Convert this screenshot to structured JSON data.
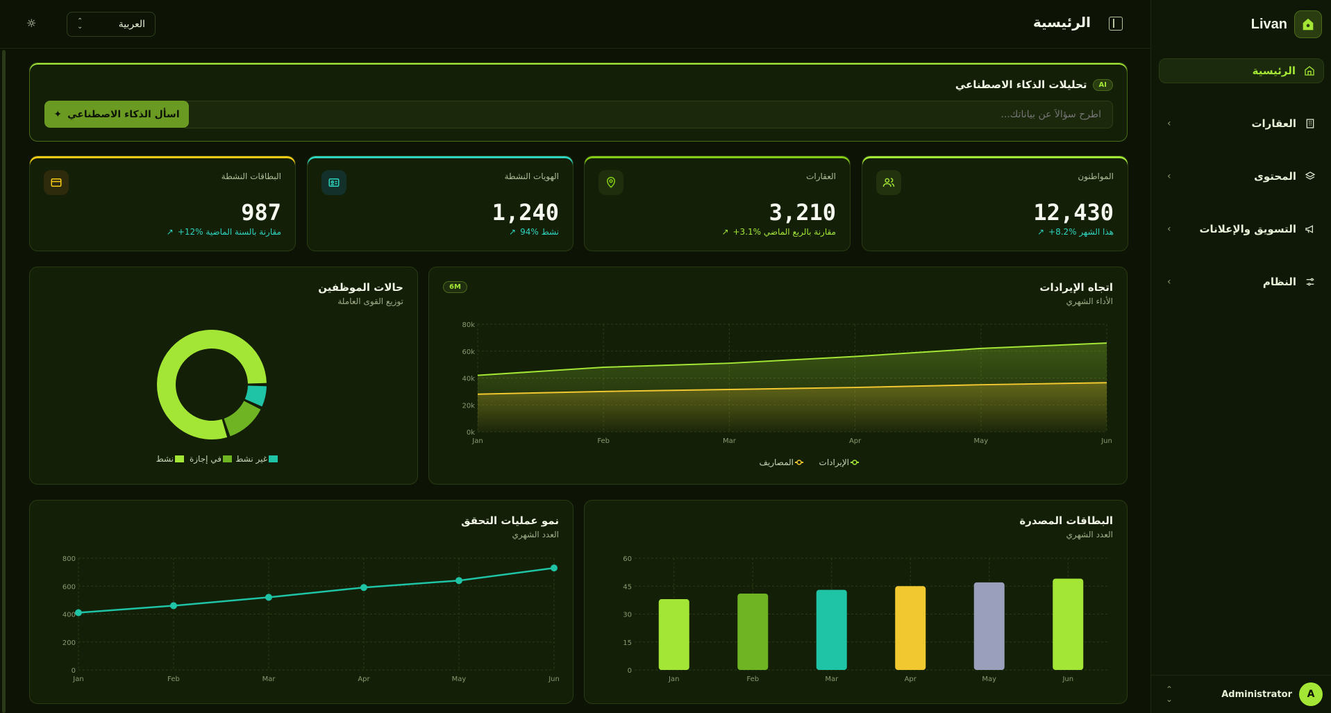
{
  "app": {
    "name": "Livan",
    "logo_icon": "house-icon"
  },
  "header": {
    "title": "الرئيسية",
    "language": "العربية"
  },
  "sidebar": {
    "items": [
      {
        "label": "الرئيسية",
        "icon": "home-icon",
        "active": true
      },
      {
        "label": "العقارات",
        "icon": "building-icon"
      },
      {
        "label": "المحتوى",
        "icon": "layers-icon"
      },
      {
        "label": "التسويق والإعلانات",
        "icon": "megaphone-icon"
      },
      {
        "label": "النظام",
        "icon": "sliders-icon"
      }
    ],
    "user": {
      "initial": "A",
      "name": "Administrator"
    }
  },
  "ai": {
    "badge": "AI",
    "title": "تحليلات الذكاء الاصطناعي",
    "placeholder": "اطرح سؤالاً عن بياناتك...",
    "button": "اسأل الذكاء الاصطناعي"
  },
  "kpis": [
    {
      "label": "المواطنون",
      "value": "12,430",
      "delta": "+8.2% هذا الشهر",
      "icon": "users-icon",
      "accent": "#a3e635"
    },
    {
      "label": "العقارات",
      "value": "3,210",
      "delta": "+3.1% مقارنة بالربع الماضي",
      "icon": "map-pin-icon",
      "accent": "#84cc16"
    },
    {
      "label": "الهويات النشطة",
      "value": "1,240",
      "delta": "94% نشط",
      "icon": "id-card-icon",
      "accent": "#2dd4bf"
    },
    {
      "label": "البطاقات النشطة",
      "value": "987",
      "delta": "+12% مقارنة بالسنة الماضية",
      "icon": "credit-card-icon",
      "accent": "#facc15"
    }
  ],
  "colors": {
    "lime": "#a3e635",
    "green": "#6fb423",
    "teal": "#1fc4a6",
    "yellow": "#f2c830",
    "slate": "#9aa0bc"
  },
  "charts": {
    "revenue": {
      "title": "اتجاه الإيرادات",
      "subtitle": "الأداء الشهري",
      "period": "6M"
    },
    "staff": {
      "title": "حالات الموظفين",
      "subtitle": "توزيع القوى العاملة"
    },
    "cards": {
      "title": "البطاقات المصدرة",
      "subtitle": "العدد الشهري"
    },
    "verifications": {
      "title": "نمو عمليات التحقق",
      "subtitle": "العدد الشهري"
    }
  },
  "chart_data": [
    {
      "type": "area",
      "categories": [
        "Jan",
        "Feb",
        "Mar",
        "Apr",
        "May",
        "Jun"
      ],
      "yticks": [
        "0k",
        "20k",
        "40k",
        "60k",
        "80k"
      ],
      "ylim": [
        0,
        80000
      ],
      "series": [
        {
          "name": "الإيرادات",
          "values": [
            42000,
            48000,
            51000,
            56000,
            62000,
            66000
          ],
          "color": "#a3e635"
        },
        {
          "name": "المصاريف",
          "values": [
            28000,
            30000,
            31500,
            33000,
            35000,
            36500
          ],
          "color": "#f2c830"
        }
      ]
    },
    {
      "type": "pie",
      "series": [
        {
          "name": "نشط",
          "value": 80,
          "color": "#a3e635"
        },
        {
          "name": "في إجازة",
          "value": 13,
          "color": "#6fb423"
        },
        {
          "name": "غير نشط",
          "value": 7,
          "color": "#1fc4a6"
        }
      ]
    },
    {
      "type": "bar",
      "categories": [
        "Jan",
        "Feb",
        "Mar",
        "Apr",
        "May",
        "Jun"
      ],
      "values": [
        38,
        41,
        43,
        45,
        47,
        49
      ],
      "colors": [
        "#a3e635",
        "#6fb423",
        "#1fc4a6",
        "#f2c830",
        "#9aa0bc",
        "#a3e635"
      ],
      "yticks": [
        "0",
        "15",
        "30",
        "45",
        "60"
      ],
      "ylim": [
        0,
        60
      ]
    },
    {
      "type": "line",
      "categories": [
        "Jan",
        "Feb",
        "Mar",
        "Apr",
        "May",
        "Jun"
      ],
      "values": [
        410,
        460,
        520,
        590,
        640,
        730
      ],
      "yticks": [
        "0",
        "200",
        "400",
        "600",
        "800"
      ],
      "ylim": [
        0,
        800
      ],
      "color": "#1fc4a6"
    }
  ]
}
